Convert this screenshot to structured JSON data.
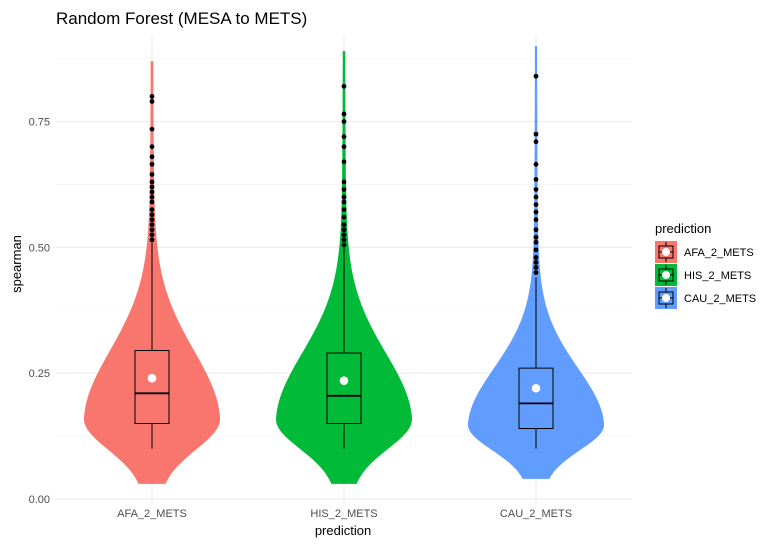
{
  "chart_data": {
    "type": "violin",
    "title": "Random Forest (MESA to METS)",
    "xlabel": "prediction",
    "ylabel": "spearman",
    "ylim": [
      -0.01,
      0.92
    ],
    "yticks": [
      0.0,
      0.25,
      0.5,
      0.75
    ],
    "ytick_labels": [
      "0.00",
      "0.25",
      "0.50",
      "0.75"
    ],
    "grid": true,
    "legend": {
      "title": "prediction",
      "position": "right"
    },
    "categories": [
      "AFA_2_METS",
      "HIS_2_METS",
      "CAU_2_METS"
    ],
    "series": [
      {
        "name": "AFA_2_METS",
        "color": "#F8766D",
        "violin_range": [
          0.03,
          0.87
        ],
        "box": {
          "q1": 0.15,
          "median": 0.21,
          "q3": 0.295,
          "whisker_low": 0.1,
          "whisker_high": 0.51
        },
        "mean": 0.24,
        "outliers": [
          0.8,
          0.79,
          0.735,
          0.7,
          0.68,
          0.665,
          0.645,
          0.63,
          0.62,
          0.61,
          0.6,
          0.59,
          0.575,
          0.565,
          0.555,
          0.545,
          0.535,
          0.525,
          0.515
        ]
      },
      {
        "name": "HIS_2_METS",
        "color": "#00BA38",
        "violin_range": [
          0.03,
          0.89
        ],
        "box": {
          "q1": 0.15,
          "median": 0.205,
          "q3": 0.29,
          "whisker_low": 0.1,
          "whisker_high": 0.5
        },
        "mean": 0.235,
        "outliers": [
          0.82,
          0.765,
          0.75,
          0.72,
          0.7,
          0.67,
          0.63,
          0.615,
          0.6,
          0.59,
          0.575,
          0.56,
          0.545,
          0.535,
          0.525,
          0.515,
          0.505
        ]
      },
      {
        "name": "CAU_2_METS",
        "color": "#619CFF",
        "violin_range": [
          0.04,
          0.9
        ],
        "box": {
          "q1": 0.14,
          "median": 0.19,
          "q3": 0.26,
          "whisker_low": 0.1,
          "whisker_high": 0.44
        },
        "mean": 0.22,
        "outliers": [
          0.84,
          0.725,
          0.71,
          0.665,
          0.635,
          0.615,
          0.6,
          0.585,
          0.57,
          0.555,
          0.535,
          0.52,
          0.51,
          0.495,
          0.48,
          0.47,
          0.46,
          0.45
        ]
      }
    ]
  }
}
